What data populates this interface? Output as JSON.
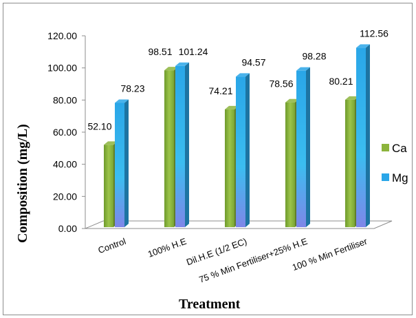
{
  "chart_data": {
    "type": "bar",
    "title": "",
    "xlabel": "Treatment",
    "ylabel": "Composition (mg/L)",
    "ylim": [
      0,
      120
    ],
    "yticks": [
      "0.00",
      "20.00",
      "40.00",
      "60.00",
      "80.00",
      "100.00",
      "120.00"
    ],
    "categories": [
      "Control",
      "100% H.E",
      "Dil.H.E (1/2 EC)",
      "75 % Min Fertiliser+25% H.E",
      "100 % Min Fertiliser"
    ],
    "series": [
      {
        "name": "Ca",
        "values": [
          52.1,
          98.51,
          74.21,
          78.56,
          80.21
        ],
        "labels": [
          "52.10",
          "98.51",
          "74.21",
          "78.56",
          "80.21"
        ],
        "color": "#8cb43c"
      },
      {
        "name": "Mg",
        "values": [
          78.23,
          101.24,
          94.57,
          98.28,
          112.56
        ],
        "labels": [
          "78.23",
          "101.24",
          "94.57",
          "98.28",
          "112.56"
        ],
        "color": "#2aa6e8"
      }
    ],
    "legend_position": "right",
    "grid": false,
    "style": "3d-column"
  }
}
